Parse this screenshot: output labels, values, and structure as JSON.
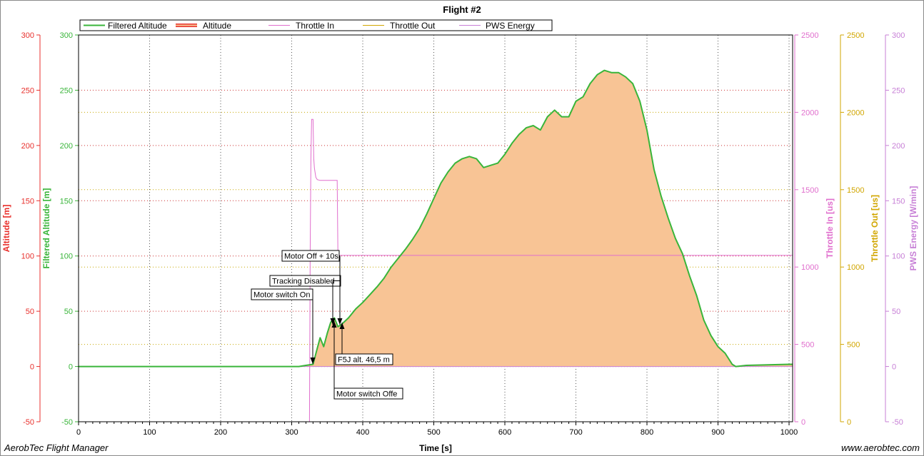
{
  "app": {
    "name": "AerobTec Flight Manager",
    "website": "www.aerobtec.com"
  },
  "chart_data": {
    "type": "area",
    "title": "Flight #2",
    "xlabel": "Time [s]",
    "xlim": [
      0,
      1005
    ],
    "x_ticks": [
      0,
      100,
      200,
      300,
      400,
      500,
      600,
      700,
      800,
      900,
      1000
    ],
    "legend": {
      "placement": "top",
      "entries": [
        "Filtered Altitude",
        "Altitude",
        "Throttle In",
        "Throttle Out",
        "PWS Energy"
      ]
    },
    "colors": {
      "altitude": "#e8302c",
      "filtered_altitude": "#39b53a",
      "area_fill": "#f8c495",
      "throttle_in": "#e06ecd",
      "throttle_out": "#d1a600",
      "pws_energy": "#c77fd6"
    },
    "axes": [
      {
        "id": "altitude",
        "label": "Altitude [m]",
        "side": "left",
        "ylim": [
          -50,
          300
        ],
        "ticks": [
          -50,
          0,
          50,
          100,
          150,
          200,
          250,
          300
        ]
      },
      {
        "id": "filtered_altitude",
        "label": "Filtered Altitude [m]",
        "side": "left",
        "ylim": [
          -50,
          300
        ],
        "ticks": [
          -50,
          0,
          50,
          100,
          150,
          200,
          250,
          300
        ]
      },
      {
        "id": "throttle_in",
        "label": "Throttle In [us]",
        "side": "right",
        "ylim": [
          0,
          2500
        ],
        "ticks": [
          0,
          500,
          1000,
          1500,
          2000,
          2500
        ]
      },
      {
        "id": "throttle_out",
        "label": "Throttle Out [us]",
        "side": "right",
        "ylim": [
          0,
          2500
        ],
        "ticks": [
          0,
          500,
          1000,
          1500,
          2000,
          2500
        ]
      },
      {
        "id": "pws_energy",
        "label": "PWS Energy [W/min]",
        "side": "right",
        "ylim": [
          -50,
          300
        ],
        "ticks": [
          -50,
          0,
          50,
          100,
          150,
          200,
          250,
          300
        ]
      }
    ],
    "grid": true,
    "series": [
      {
        "name": "Filtered Altitude",
        "axis": "filtered_altitude",
        "x": [
          0,
          100,
          200,
          300,
          310,
          320,
          330,
          335,
          340,
          345,
          350,
          355,
          360,
          365,
          370,
          380,
          390,
          400,
          410,
          420,
          430,
          440,
          450,
          460,
          470,
          480,
          490,
          500,
          510,
          520,
          530,
          540,
          550,
          560,
          570,
          580,
          590,
          600,
          610,
          620,
          630,
          640,
          650,
          660,
          670,
          680,
          690,
          700,
          710,
          720,
          730,
          740,
          750,
          760,
          770,
          780,
          790,
          800,
          810,
          820,
          830,
          840,
          850,
          860,
          870,
          880,
          890,
          900,
          910,
          920,
          925,
          940,
          1000,
          1005
        ],
        "values": [
          0,
          0,
          0,
          0,
          0,
          1,
          2,
          14,
          26,
          18,
          30,
          40,
          44,
          36,
          38,
          44,
          52,
          58,
          65,
          72,
          80,
          90,
          98,
          106,
          115,
          125,
          138,
          152,
          166,
          176,
          184,
          188,
          190,
          188,
          180,
          182,
          184,
          192,
          202,
          210,
          216,
          218,
          214,
          226,
          232,
          226,
          226,
          240,
          244,
          256,
          264,
          268,
          266,
          266,
          262,
          256,
          240,
          214,
          178,
          154,
          134,
          116,
          102,
          82,
          64,
          42,
          28,
          18,
          12,
          2,
          0,
          1,
          2,
          2
        ]
      },
      {
        "name": "Throttle In",
        "axis": "throttle_in",
        "x": [
          0,
          325,
          326,
          327,
          328,
          330,
          331,
          332,
          334,
          336,
          340,
          350,
          360,
          364,
          365,
          366,
          1005
        ],
        "values": [
          0,
          0,
          1100,
          1700,
          1955,
          1955,
          1700,
          1640,
          1580,
          1565,
          1560,
          1560,
          1560,
          1560,
          1100,
          1075,
          1075
        ]
      },
      {
        "name": "Throttle Out",
        "axis": "throttle_out",
        "x": [
          0,
          1005
        ],
        "values": [
          0,
          0
        ]
      },
      {
        "name": "PWS Energy",
        "axis": "pws_energy",
        "x": [
          0,
          1005
        ],
        "values": [
          0,
          0
        ]
      }
    ],
    "markers": [
      {
        "text": "Motor switch On",
        "x": 328,
        "y": 4
      },
      {
        "text": "Tracking Disable",
        "text_tail": "d",
        "x": 357,
        "y": 40
      },
      {
        "text": "Motor Off + 10s",
        "x": 367,
        "y": 40
      },
      {
        "text": "Motor switch Off",
        "text_tail": "e",
        "x": 357,
        "y": 40
      },
      {
        "text": "F5J alt. 46,5 m",
        "x": 363,
        "y": 40
      }
    ]
  }
}
